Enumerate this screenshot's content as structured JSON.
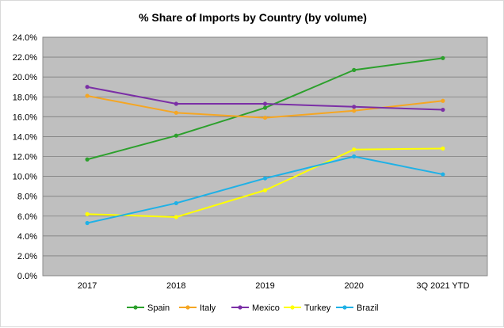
{
  "chart_data": {
    "type": "line",
    "title": "% Share of Imports by Country (by volume)",
    "xlabel": "",
    "ylabel": "",
    "categories": [
      "2017",
      "2018",
      "2019",
      "2020",
      "3Q 2021 YTD"
    ],
    "ylim": [
      0,
      24
    ],
    "y_ticks": [
      "0.0%",
      "2.0%",
      "4.0%",
      "6.0%",
      "8.0%",
      "10.0%",
      "12.0%",
      "14.0%",
      "16.0%",
      "18.0%",
      "20.0%",
      "22.0%",
      "24.0%"
    ],
    "grid": true,
    "legend_position": "bottom",
    "plot_background": "#bfbfbf",
    "series": [
      {
        "name": "Spain",
        "color": "#2ca02c",
        "values": [
          11.7,
          14.1,
          16.9,
          20.7,
          21.9
        ]
      },
      {
        "name": "Italy",
        "color": "#f5a623",
        "values": [
          18.1,
          16.4,
          15.9,
          16.6,
          17.6
        ]
      },
      {
        "name": "Mexico",
        "color": "#7b2fa6",
        "values": [
          19.0,
          17.3,
          17.3,
          17.0,
          16.7
        ]
      },
      {
        "name": "Turkey",
        "color": "#ffff00",
        "values": [
          6.2,
          5.9,
          8.6,
          12.7,
          12.8
        ]
      },
      {
        "name": "Brazil",
        "color": "#1fb1e6",
        "values": [
          5.3,
          7.3,
          9.8,
          12.0,
          10.2
        ]
      }
    ]
  }
}
